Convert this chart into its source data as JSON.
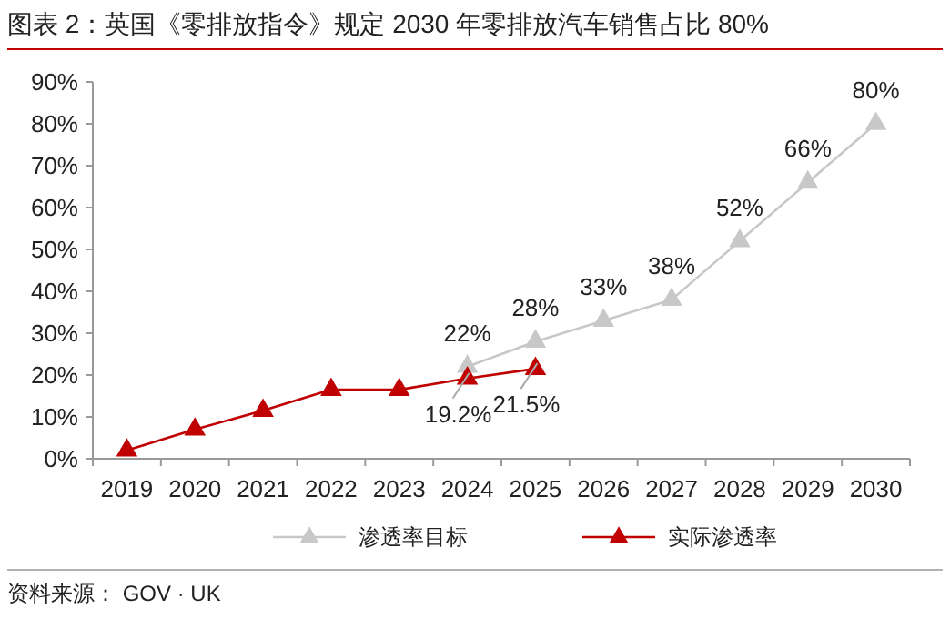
{
  "chart_data": {
    "type": "line",
    "title": "图表 2：英国《零排放指令》规定 2030 年零排放汽车销售占比 80%",
    "categories": [
      "2019",
      "2020",
      "2021",
      "2022",
      "2023",
      "2024",
      "2025",
      "2026",
      "2027",
      "2028",
      "2029",
      "2030"
    ],
    "series": [
      {
        "name": "渗透率目标",
        "color": "#c8c8c8",
        "values": [
          null,
          null,
          null,
          null,
          null,
          22,
          28,
          33,
          38,
          52,
          66,
          80
        ],
        "value_labels": [
          null,
          null,
          null,
          null,
          null,
          "22%",
          "28%",
          "33%",
          "38%",
          "52%",
          "66%",
          "80%"
        ]
      },
      {
        "name": "实际渗透率",
        "color": "#c00000",
        "values": [
          2,
          7,
          11.5,
          16.5,
          16.5,
          19.2,
          21.5,
          null,
          null,
          null,
          null,
          null
        ],
        "value_labels": [
          null,
          null,
          null,
          null,
          null,
          "19.2%",
          "21.5%",
          null,
          null,
          null,
          null,
          null
        ]
      }
    ],
    "ylim": [
      0,
      90
    ],
    "yticks": [
      {
        "value": 0,
        "label": "0%"
      },
      {
        "value": 10,
        "label": "10%"
      },
      {
        "value": 20,
        "label": "20%"
      },
      {
        "value": 30,
        "label": "30%"
      },
      {
        "value": 40,
        "label": "40%"
      },
      {
        "value": 50,
        "label": "50%"
      },
      {
        "value": 60,
        "label": "60%"
      },
      {
        "value": 70,
        "label": "70%"
      },
      {
        "value": 80,
        "label": "80%"
      },
      {
        "value": 90,
        "label": "90%"
      }
    ],
    "grid": false,
    "legend": "bottom",
    "marker": "triangle",
    "line_style": "solid",
    "annotations": [
      "资料来源：  GOV · UK"
    ]
  }
}
